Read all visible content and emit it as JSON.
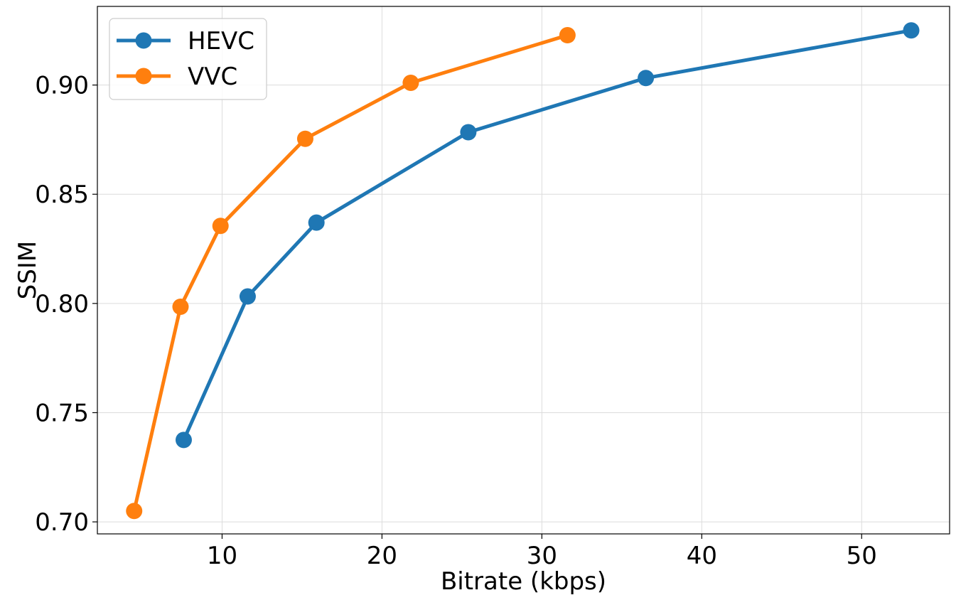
{
  "chart_data": {
    "type": "line",
    "title": "",
    "xlabel": "Bitrate (kbps)",
    "ylabel": "SSIM",
    "xlim": [
      2.2,
      55.5
    ],
    "ylim": [
      0.6945,
      0.936
    ],
    "xticks": [
      10,
      20,
      30,
      40,
      50
    ],
    "xtick_labels": [
      "10",
      "20",
      "30",
      "40",
      "50"
    ],
    "yticks": [
      0.7,
      0.75,
      0.8,
      0.85,
      0.9
    ],
    "ytick_labels": [
      "0.70",
      "0.75",
      "0.80",
      "0.85",
      "0.90"
    ],
    "grid": true,
    "legend_position": "top-left",
    "series": [
      {
        "name": "HEVC",
        "color": "#1f77b4",
        "marker": "circle",
        "x": [
          7.6,
          11.6,
          15.9,
          25.4,
          36.5,
          53.1
        ],
        "y": [
          0.7375,
          0.8032,
          0.837,
          0.8784,
          0.9032,
          0.925
        ]
      },
      {
        "name": "VVC",
        "color": "#ff7f0e",
        "marker": "circle",
        "x": [
          4.5,
          7.4,
          9.9,
          15.2,
          21.8,
          31.6
        ],
        "y": [
          0.705,
          0.7985,
          0.8355,
          0.8754,
          0.901,
          0.9228
        ]
      }
    ]
  }
}
